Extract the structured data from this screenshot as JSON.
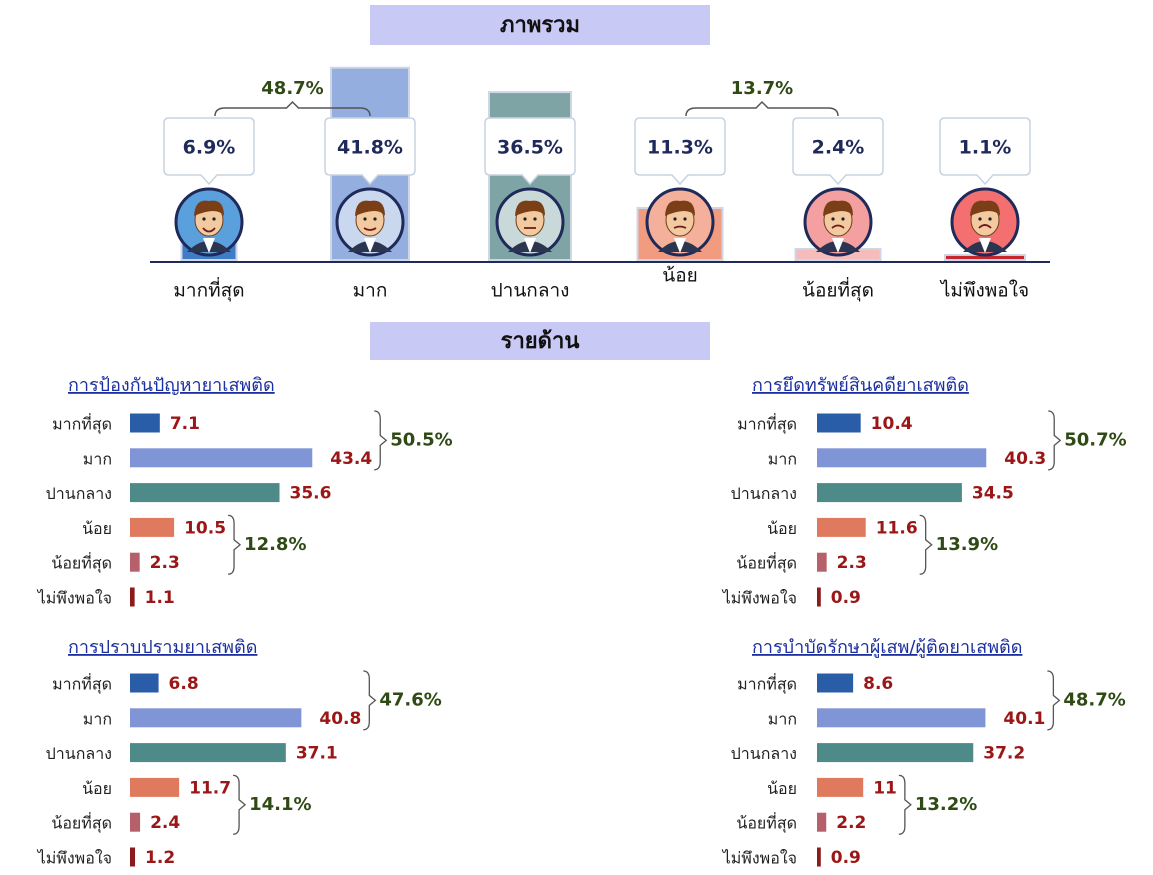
{
  "section_title": "รายด้าน",
  "chart_data": [
    {
      "type": "bar",
      "title": "ภาพรวม",
      "categories": [
        "มากที่สุด",
        "มาก",
        "ปานกลาง",
        "น้อย",
        "น้อยที่สุด",
        "ไม่พึงพอใจ"
      ],
      "values": [
        6.9,
        41.8,
        36.5,
        11.3,
        2.4,
        1.1
      ],
      "value_labels": [
        "6.9%",
        "41.8%",
        "36.5%",
        "11.3%",
        "2.4%",
        "1.1%"
      ],
      "colors": [
        "#3f7bc6",
        "#94aee0",
        "#7fa4a6",
        "#f19b80",
        "#f6bcbc",
        "#c8262e"
      ],
      "annotations": [
        "48.7%",
        "13.7%"
      ]
    },
    {
      "type": "barh",
      "title": "การป้องกันปัญหายาเสพติด",
      "categories": [
        "มากที่สุด",
        "มาก",
        "ปานกลาง",
        "น้อย",
        "น้อยที่สุด",
        "ไม่พึงพอใจ"
      ],
      "values": [
        7.1,
        43.4,
        35.6,
        10.5,
        2.3,
        1.1
      ],
      "colors": [
        "#2a5da8",
        "#7f95d6",
        "#4e8a88",
        "#e07a5f",
        "#b5606a",
        "#8b1a1a"
      ],
      "annotations": [
        "50.5%",
        "12.8%"
      ]
    },
    {
      "type": "barh",
      "title": "การยึดทรัพย์สินคดียาเสพติด",
      "categories": [
        "มากที่สุด",
        "มาก",
        "ปานกลาง",
        "น้อย",
        "น้อยที่สุด",
        "ไม่พึงพอใจ"
      ],
      "values": [
        10.4,
        40.3,
        34.5,
        11.6,
        2.3,
        0.9
      ],
      "colors": [
        "#2a5da8",
        "#7f95d6",
        "#4e8a88",
        "#e07a5f",
        "#b5606a",
        "#8b1a1a"
      ],
      "annotations": [
        "50.7%",
        "13.9%"
      ]
    },
    {
      "type": "barh",
      "title": "การปราบปรามยาเสพติด",
      "categories": [
        "มากที่สุด",
        "มาก",
        "ปานกลาง",
        "น้อย",
        "น้อยที่สุด",
        "ไม่พึงพอใจ"
      ],
      "values": [
        6.8,
        40.8,
        37.1,
        11.7,
        2.4,
        1.2
      ],
      "colors": [
        "#2a5da8",
        "#7f95d6",
        "#4e8a88",
        "#e07a5f",
        "#b5606a",
        "#8b1a1a"
      ],
      "annotations": [
        "47.6%",
        "14.1%"
      ]
    },
    {
      "type": "barh",
      "title": "การบำบัดรักษาผู้เสพ/ผู้ติดยาเสพติด",
      "categories": [
        "มากที่สุด",
        "มาก",
        "ปานกลาง",
        "น้อย",
        "น้อยที่สุด",
        "ไม่พึงพอใจ"
      ],
      "values": [
        8.6,
        40.1,
        37.2,
        11.0,
        2.2,
        0.9
      ],
      "colors": [
        "#2a5da8",
        "#7f95d6",
        "#4e8a88",
        "#e07a5f",
        "#b5606a",
        "#8b1a1a"
      ],
      "annotations": [
        "48.7%",
        "13.2%"
      ]
    }
  ]
}
